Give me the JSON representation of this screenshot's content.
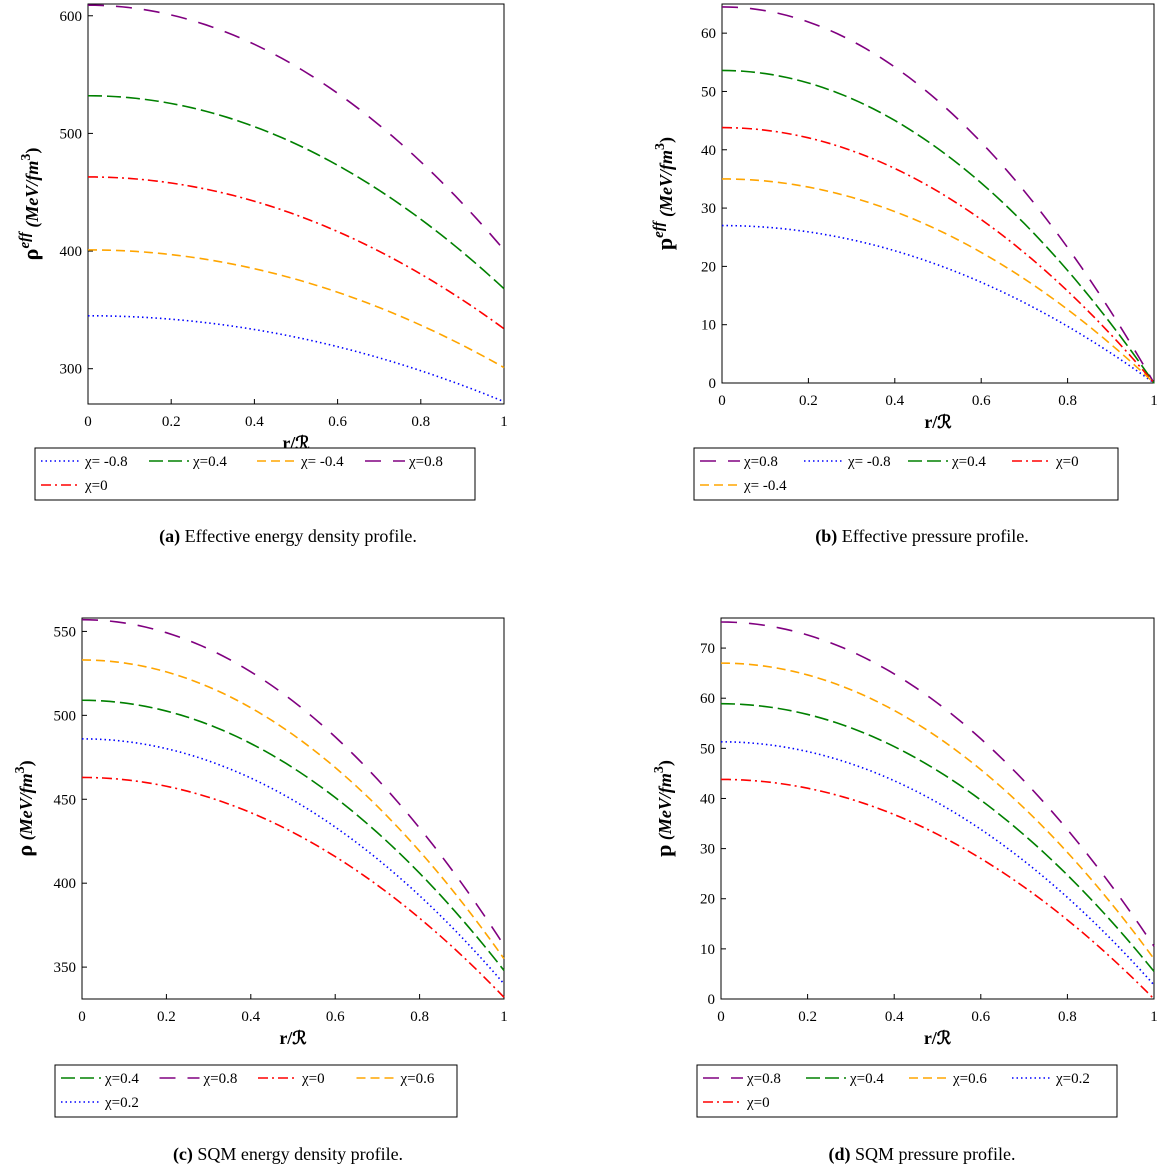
{
  "colors": {
    "blue": "#0000ff",
    "green": "#008000",
    "orange": "#ffa500",
    "purple": "#800080",
    "red": "#ff0000"
  },
  "chart_data": [
    {
      "id": "a",
      "type": "line",
      "caption_tag": "(a)",
      "caption": "Effective energy density profile.",
      "xlabel": "r/ℛ",
      "ylabel": {
        "base": "ρ",
        "sup": "eff",
        "unit": "(MeV/fm",
        "unit_sup": "3",
        "unit_close": ")"
      },
      "xlim": [
        0,
        1
      ],
      "ylim": [
        270,
        610
      ],
      "xticks": [
        "0",
        "0.2",
        "0.4",
        "0.6",
        "0.8",
        "1"
      ],
      "yticks": [
        "300",
        "400",
        "500",
        "600"
      ],
      "grid": false,
      "legend_placement": "below",
      "series": [
        {
          "name": "χ= -0.8",
          "color": "#0000ff",
          "style": "dotted",
          "y0": 345,
          "y1": 272
        },
        {
          "name": "χ=0.4",
          "color": "#008000",
          "style": "longdash",
          "y0": 532,
          "y1": 368
        },
        {
          "name": "χ= -0.4",
          "color": "#ffa500",
          "style": "dash",
          "y0": 401,
          "y1": 301
        },
        {
          "name": "χ=0.8",
          "color": "#800080",
          "style": "spacedash",
          "y0": 609,
          "y1": 401
        },
        {
          "name": "χ=0",
          "color": "#ff0000",
          "style": "dashdot",
          "y0": 463,
          "y1": 334
        }
      ]
    },
    {
      "id": "b",
      "type": "line",
      "caption_tag": "(b)",
      "caption": "Effective pressure profile.",
      "xlabel": "r/ℛ",
      "ylabel": {
        "base": "p",
        "sup": "eff",
        "unit": "(MeV/fm",
        "unit_sup": "3",
        "unit_close": ")"
      },
      "xlim": [
        0,
        1
      ],
      "ylim": [
        0,
        65
      ],
      "xticks": [
        "0",
        "0.2",
        "0.4",
        "0.6",
        "0.8",
        "1"
      ],
      "yticks": [
        "0",
        "10",
        "20",
        "30",
        "40",
        "50",
        "60"
      ],
      "grid": false,
      "legend_placement": "below",
      "series": [
        {
          "name": "χ=0.8",
          "color": "#800080",
          "style": "spacedash",
          "y0": 64.5,
          "y1": 0
        },
        {
          "name": "χ= -0.8",
          "color": "#0000ff",
          "style": "dotted",
          "y0": 27,
          "y1": 0
        },
        {
          "name": "χ=0.4",
          "color": "#008000",
          "style": "longdash",
          "y0": 53.6,
          "y1": 0
        },
        {
          "name": "χ=0",
          "color": "#ff0000",
          "style": "dashdot",
          "y0": 43.8,
          "y1": 0
        },
        {
          "name": "χ= -0.4",
          "color": "#ffa500",
          "style": "dash",
          "y0": 35,
          "y1": 0
        }
      ]
    },
    {
      "id": "c",
      "type": "line",
      "caption_tag": "(c)",
      "caption": "SQM energy density profile.",
      "xlabel": "r/ℛ",
      "ylabel": {
        "base": "ρ",
        "sup": "",
        "unit": "(MeV/fm",
        "unit_sup": "3",
        "unit_close": ")"
      },
      "xlim": [
        0,
        1
      ],
      "ylim": [
        331,
        558
      ],
      "xticks": [
        "0",
        "0.2",
        "0.4",
        "0.6",
        "0.8",
        "1"
      ],
      "yticks": [
        "350",
        "400",
        "450",
        "500",
        "550"
      ],
      "grid": false,
      "legend_placement": "below",
      "series": [
        {
          "name": "χ=0.4",
          "color": "#008000",
          "style": "longdash",
          "y0": 509,
          "y1": 348
        },
        {
          "name": "χ=0.8",
          "color": "#800080",
          "style": "spacedash",
          "y0": 557,
          "y1": 363
        },
        {
          "name": "χ=0",
          "color": "#ff0000",
          "style": "dashdot",
          "y0": 463,
          "y1": 332
        },
        {
          "name": "χ=0.6",
          "color": "#ffa500",
          "style": "dash",
          "y0": 533,
          "y1": 355
        },
        {
          "name": "χ=0.2",
          "color": "#0000ff",
          "style": "dotted",
          "y0": 486,
          "y1": 340
        }
      ]
    },
    {
      "id": "d",
      "type": "line",
      "caption_tag": "(d)",
      "caption": "SQM pressure profile.",
      "xlabel": "r/ℛ",
      "ylabel": {
        "base": "p",
        "sup": "",
        "unit": "(MeV/fm",
        "unit_sup": "3",
        "unit_close": ")"
      },
      "xlim": [
        0,
        1
      ],
      "ylim": [
        0,
        76
      ],
      "xticks": [
        "0",
        "0.2",
        "0.4",
        "0.6",
        "0.8",
        "1"
      ],
      "yticks": [
        "0",
        "10",
        "20",
        "30",
        "40",
        "50",
        "60",
        "70"
      ],
      "grid": false,
      "legend_placement": "below",
      "series": [
        {
          "name": "χ=0.8",
          "color": "#800080",
          "style": "spacedash",
          "y0": 75.2,
          "y1": 10.5
        },
        {
          "name": "χ=0.4",
          "color": "#008000",
          "style": "longdash",
          "y0": 58.9,
          "y1": 5.5
        },
        {
          "name": "χ=0.6",
          "color": "#ffa500",
          "style": "dash",
          "y0": 67,
          "y1": 8
        },
        {
          "name": "χ=0.2",
          "color": "#0000ff",
          "style": "dotted",
          "y0": 51.3,
          "y1": 2.8
        },
        {
          "name": "χ=0",
          "color": "#ff0000",
          "style": "dashdot",
          "y0": 43.8,
          "y1": 0
        }
      ]
    }
  ]
}
